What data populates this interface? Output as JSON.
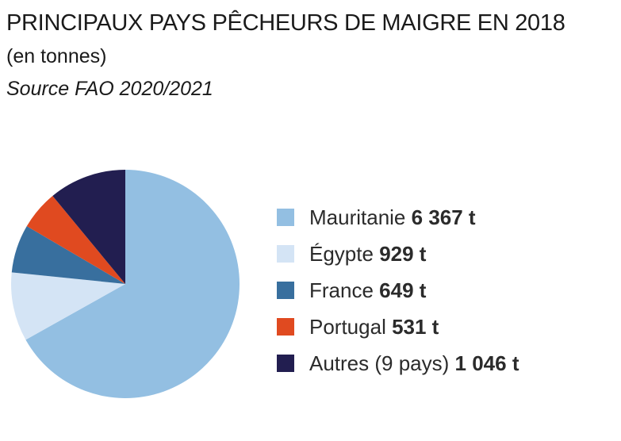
{
  "header": {
    "title": "PRINCIPAUX PAYS PÊCHEURS DE MAIGRE EN 2018",
    "subtitle": "(en tonnes)",
    "source": "Source FAO 2020/2021"
  },
  "legend": [
    {
      "name": "Mauritanie",
      "value_label": "6 367 t"
    },
    {
      "name": "Égypte",
      "value_label": "929 t"
    },
    {
      "name": "France",
      "value_label": "649 t"
    },
    {
      "name": "Portugal",
      "value_label": "531 t"
    },
    {
      "name": "Autres (9 pays)",
      "value_label": "1 046 t"
    }
  ],
  "chart_data": {
    "type": "pie",
    "title": "PRINCIPAUX PAYS PÊCHEURS DE MAIGRE EN 2018",
    "subtitle": "(en tonnes)",
    "source": "Source FAO 2020/2021",
    "legend_position": "right",
    "categories": [
      "Mauritanie",
      "Égypte",
      "France",
      "Portugal",
      "Autres (9 pays)"
    ],
    "values": [
      6367,
      929,
      649,
      531,
      1046
    ],
    "unit": "t",
    "colors": [
      "#93bfe2",
      "#d4e4f5",
      "#386f9e",
      "#e04a20",
      "#221e50"
    ]
  }
}
